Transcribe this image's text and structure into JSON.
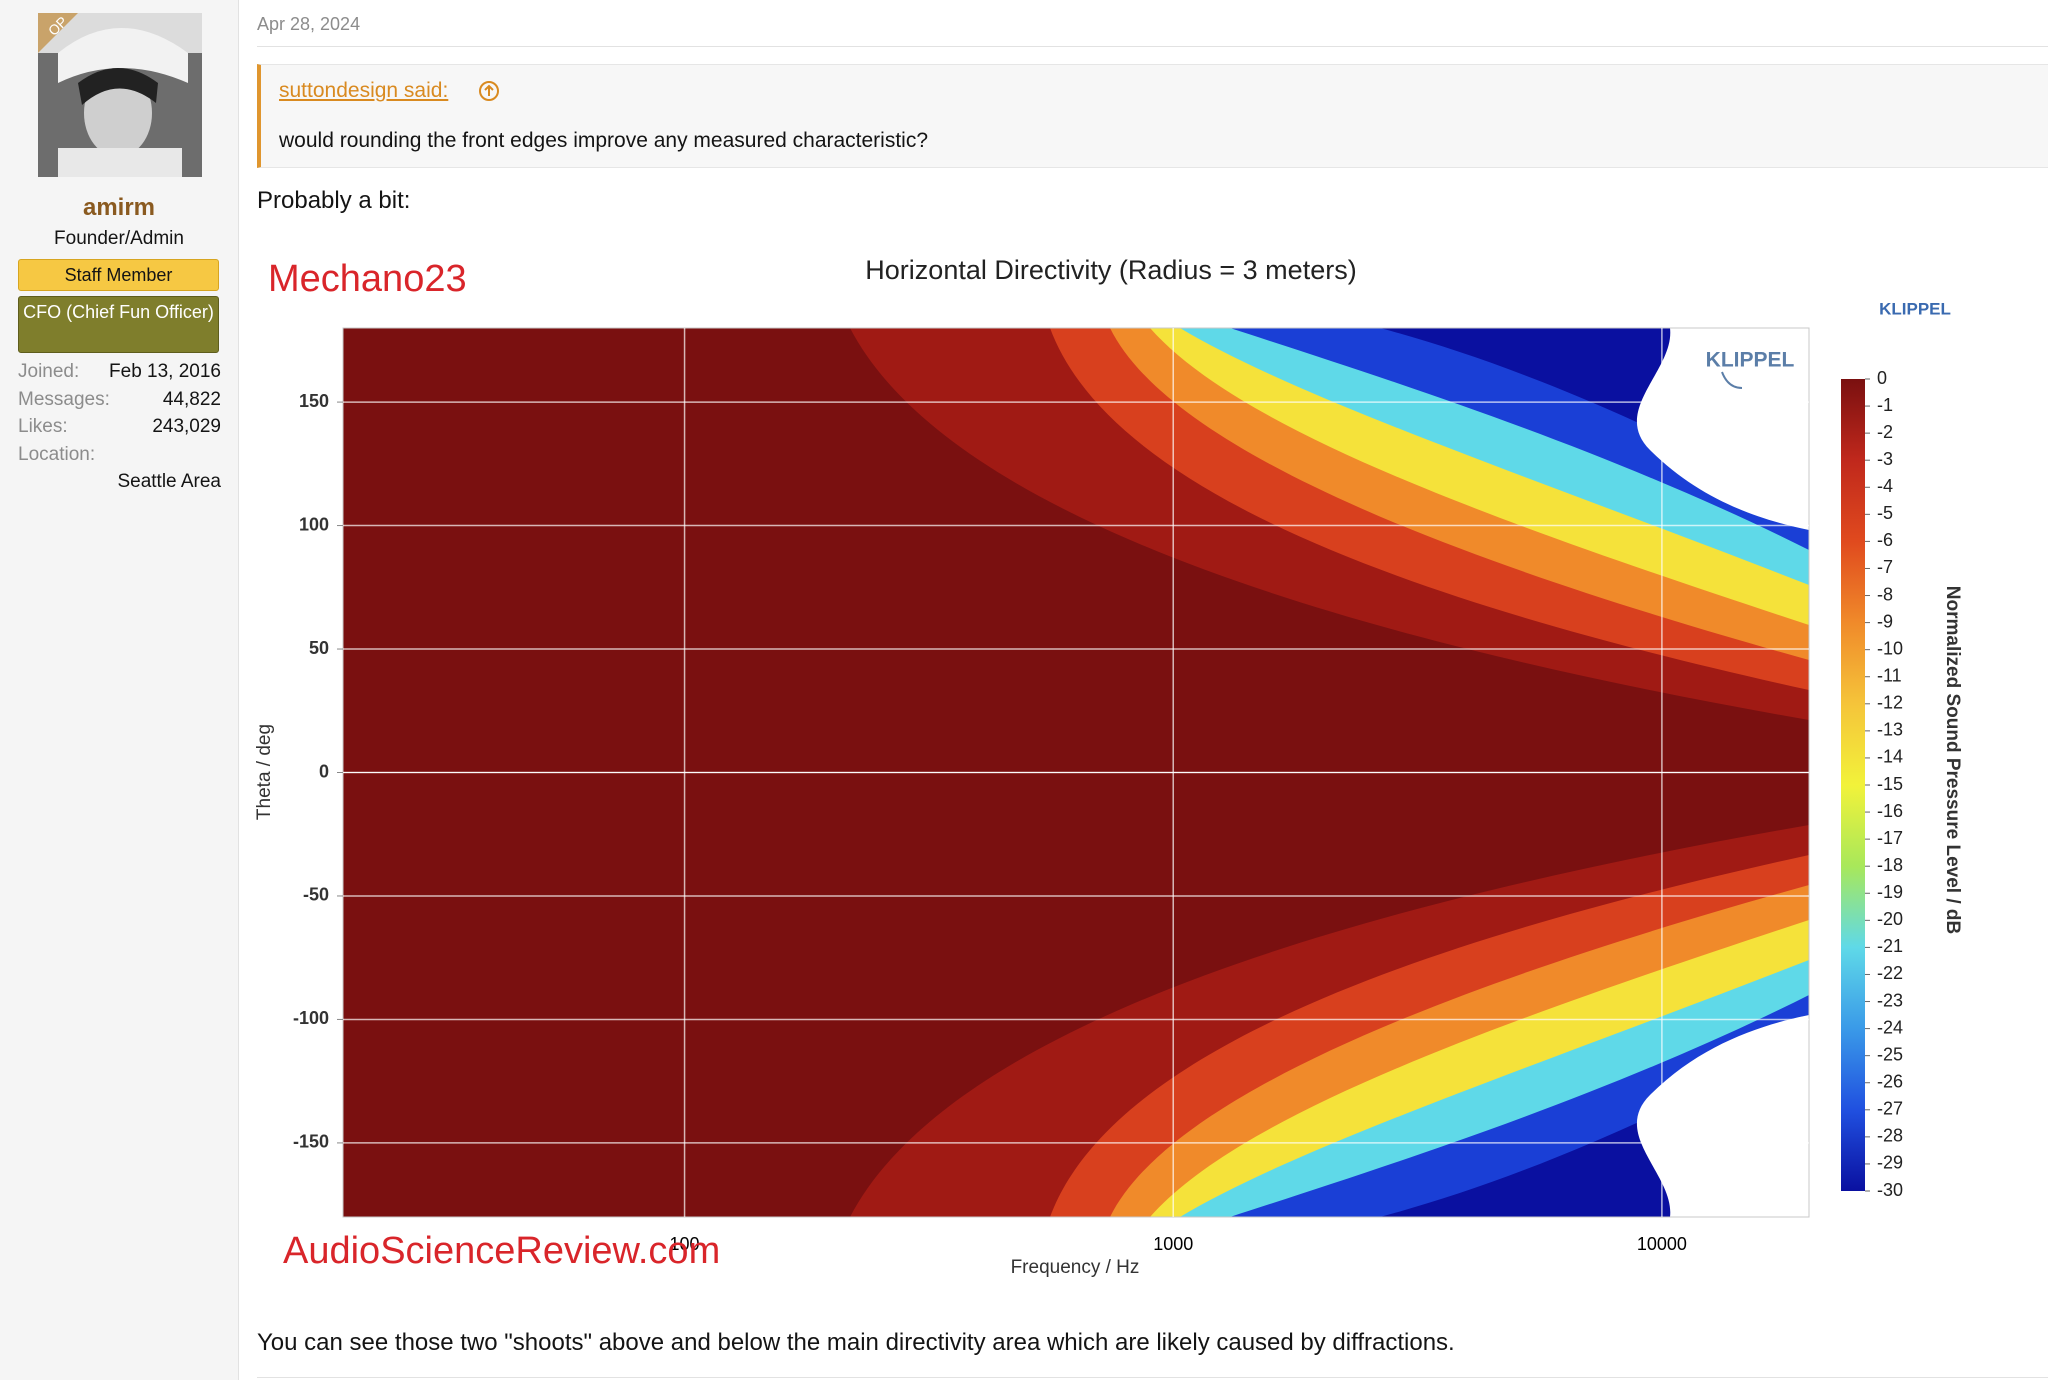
{
  "sidebar": {
    "badge": "OP",
    "username": "amirm",
    "role": "Founder/Admin",
    "banners": [
      "Staff Member",
      "CFO (Chief Fun Officer)"
    ],
    "stats": [
      {
        "label": "Joined:",
        "value": "Feb 13, 2016"
      },
      {
        "label": "Messages:",
        "value": "44,822"
      },
      {
        "label": "Likes:",
        "value": "243,029"
      }
    ],
    "location": {
      "label": "Location:",
      "value": "Seattle Area"
    }
  },
  "post": {
    "date": "Apr 28, 2024",
    "quote": {
      "author": "suttondesign said:",
      "text": "would rounding the front edges improve any measured characteristic?"
    },
    "intro": "Probably a bit:",
    "outro": "You can see those two \"shoots\" above and below the main directivity area which are likely caused by diffractions."
  },
  "chart_data": {
    "type": "contour",
    "title": "Horizontal Directivity (Radius = 3 meters)",
    "watermarks": [
      "Mechano23",
      "AudioScienceReview.com"
    ],
    "brand": "KLIPPEL",
    "logo": "KLIPPEL",
    "x_label": "Frequency / Hz",
    "y_label": "Theta / deg",
    "xscale": "log",
    "xlim": [
      20,
      20000
    ],
    "xticks": [
      100,
      1000,
      10000
    ],
    "ylim": [
      -180,
      180
    ],
    "yticks": [
      150,
      100,
      50,
      0,
      -50,
      -100,
      -150
    ],
    "grid": true,
    "colorbar": {
      "label": "Normalized Sound Pressure Level / dB",
      "lim": [
        0,
        -30
      ],
      "ticks": [
        0,
        -1,
        -2,
        -3,
        -4,
        -5,
        -6,
        -7,
        -8,
        -9,
        -10,
        -11,
        -12,
        -13,
        -14,
        -15,
        -16,
        -17,
        -18,
        -19,
        -20,
        -21,
        -22,
        -23,
        -24,
        -25,
        -26,
        -27,
        -28,
        -29,
        -30
      ],
      "colors": [
        "#7a1010",
        "#c0281c",
        "#e04a1e",
        "#f08a2a",
        "#f5c43a",
        "#f2f23a",
        "#a8e85a",
        "#5fd9e8",
        "#3a9ae8",
        "#2050e0",
        "#0a10a0"
      ]
    }
  }
}
